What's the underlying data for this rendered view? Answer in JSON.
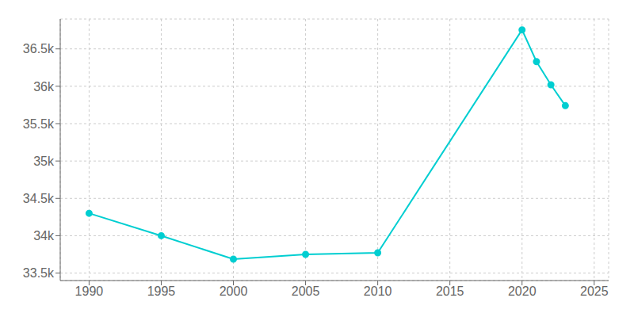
{
  "chart_data": {
    "type": "line",
    "x": [
      1990,
      1995,
      2000,
      2005,
      2010,
      2020,
      2021,
      2022,
      2023
    ],
    "values": [
      34300,
      34000,
      33686,
      33750,
      33771,
      36755,
      36330,
      36020,
      35740
    ],
    "color": "#00CED1",
    "marker": "o",
    "xlim": [
      1988,
      2026
    ],
    "ylim": [
      33400,
      36900
    ],
    "xticks": [
      1990,
      1995,
      2000,
      2005,
      2010,
      2015,
      2020,
      2025
    ],
    "yticks": [
      {
        "value": 33500,
        "label": "33.5k"
      },
      {
        "value": 34000,
        "label": "34k"
      },
      {
        "value": 34500,
        "label": "34.5k"
      },
      {
        "value": 35000,
        "label": "35k"
      },
      {
        "value": 35500,
        "label": "35.5k"
      },
      {
        "value": 36000,
        "label": "36k"
      },
      {
        "value": 36500,
        "label": "36.5k"
      }
    ],
    "grid": true
  }
}
